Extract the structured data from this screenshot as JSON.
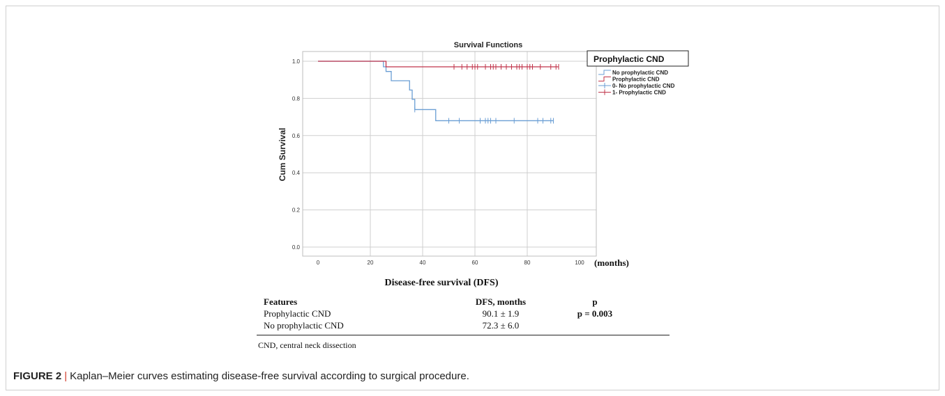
{
  "chart_data": {
    "type": "line",
    "subtype": "kaplan-meier",
    "title": "Survival Functions",
    "xlabel": "Disease-free survival (DFS)",
    "x_unit_label": "(months)",
    "ylabel": "Cum Survival",
    "xlim": [
      0,
      100
    ],
    "ylim": [
      0,
      1.0
    ],
    "x_ticks": [
      "0",
      "20",
      "40",
      "60",
      "80",
      "100"
    ],
    "y_ticks": [
      "0.0",
      "0.2",
      "0.4",
      "0.6",
      "0.8",
      "1.0"
    ],
    "grid": true,
    "legend_title": "Prophylactic CND",
    "legend_position": "top-right",
    "legend_entries": [
      {
        "label": "No prophylactic CND",
        "kind": "step",
        "color": "#6a9ed4"
      },
      {
        "label": "Prophylactic CND",
        "kind": "step",
        "color": "#c0344a"
      },
      {
        "label": "0- No prophylactic CND",
        "kind": "censor",
        "color": "#6a9ed4"
      },
      {
        "label": "1- Prophylactic CND",
        "kind": "censor",
        "color": "#c0344a"
      }
    ],
    "series": [
      {
        "name": "No prophylactic CND",
        "color": "#6a9ed4",
        "steps": [
          [
            0,
            1.0
          ],
          [
            25,
            0.97
          ],
          [
            26,
            0.945
          ],
          [
            28,
            0.895
          ],
          [
            35,
            0.845
          ],
          [
            36,
            0.795
          ],
          [
            37,
            0.74
          ],
          [
            45,
            0.68
          ],
          [
            90,
            0.68
          ]
        ],
        "censored": [
          37,
          50,
          54,
          62,
          64,
          65,
          66,
          68,
          75,
          84,
          86,
          89,
          90
        ]
      },
      {
        "name": "Prophylactic CND",
        "color": "#c0344a",
        "steps": [
          [
            0,
            1.0
          ],
          [
            26,
            0.97
          ],
          [
            92,
            0.97
          ]
        ],
        "censored": [
          52,
          55,
          57,
          59,
          60,
          61,
          64,
          66,
          67,
          68,
          70,
          72,
          74,
          76,
          77,
          78,
          80,
          81,
          82,
          85,
          89,
          91,
          92
        ]
      }
    ]
  },
  "table": {
    "headers": [
      "Features",
      "DFS, months",
      "p"
    ],
    "rows": [
      [
        "Prophylactic CND",
        "90.1 ± 1.9",
        "p = 0.003"
      ],
      [
        "No prophylactic CND",
        "72.3 ± 6.0",
        ""
      ]
    ],
    "footnote": "CND, central neck dissection"
  },
  "caption": {
    "label": "FIGURE 2",
    "separator": "|",
    "text": "Kaplan–Meier curves estimating disease-free survival according to surgical procedure."
  }
}
